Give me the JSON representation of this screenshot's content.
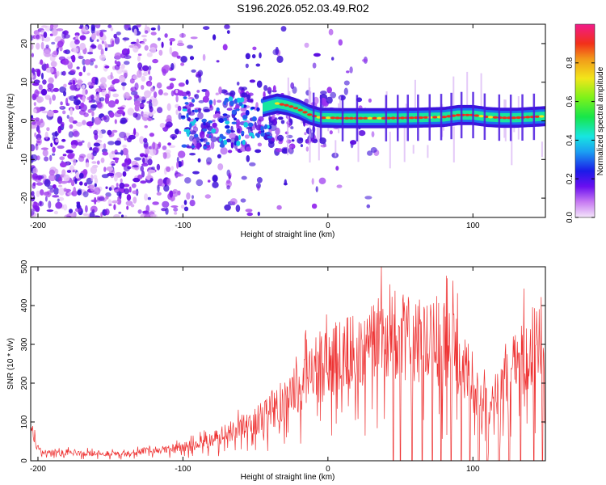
{
  "title": "S196.2026.052.03.49.R02",
  "chart_data": [
    {
      "type": "heatmap",
      "xlabel": "Height of straight line (km)",
      "ylabel": "Frequency (Hz)",
      "xlim": [
        -205,
        150
      ],
      "ylim": [
        -25,
        25
      ],
      "xticks": [
        -200,
        -100,
        0,
        100
      ],
      "yticks": [
        -20,
        -10,
        0,
        10,
        20
      ],
      "colorbar": {
        "label": "Normalized spectral amplitude",
        "range": [
          0,
          1
        ],
        "ticks": [
          "0.0",
          "0.2",
          "0.4",
          "0.6",
          "0.8"
        ],
        "tick_values": [
          0.0,
          0.2,
          0.4,
          0.6,
          0.8
        ]
      },
      "ridge": {
        "x": [
          -45,
          -35,
          -28,
          -20,
          -12,
          -5,
          0,
          10,
          20,
          40,
          60,
          80,
          90,
          100,
          110,
          120,
          130,
          140,
          150
        ],
        "freq": [
          3.5,
          4.5,
          4.0,
          3.0,
          1.5,
          0.8,
          0.8,
          0.7,
          0.7,
          0.7,
          0.8,
          1.0,
          1.5,
          1.5,
          1.0,
          0.8,
          0.8,
          1.0,
          1.2
        ]
      }
    },
    {
      "type": "line",
      "xlabel": "Height of straight line (km)",
      "ylabel": "SNR (10 * v/v)",
      "xlim": [
        -205,
        150
      ],
      "ylim": [
        0,
        500
      ],
      "xticks": [
        -200,
        -100,
        0,
        100
      ],
      "yticks": [
        0,
        100,
        200,
        300,
        400,
        500
      ],
      "series": [
        {
          "name": "SNR",
          "color": "#ee3333",
          "envelope_x": [
            -205,
            -200,
            -195,
            -180,
            -160,
            -140,
            -125,
            -120,
            -115,
            -100,
            -80,
            -60,
            -40,
            -30,
            -20,
            -10,
            0,
            10,
            20,
            30,
            40,
            50,
            60,
            70,
            80,
            90,
            95,
            100,
            105,
            110,
            115,
            120,
            125,
            130,
            140,
            150
          ],
          "envelope_y": [
            90,
            40,
            25,
            25,
            22,
            20,
            30,
            35,
            30,
            40,
            60,
            100,
            140,
            180,
            220,
            260,
            280,
            310,
            330,
            345,
            355,
            360,
            355,
            345,
            340,
            310,
            270,
            200,
            170,
            160,
            170,
            230,
            270,
            300,
            320,
            330
          ],
          "dropouts_x": [
            45,
            50,
            58,
            65,
            72,
            78,
            85,
            92,
            98,
            104,
            110,
            118,
            125,
            133,
            142,
            148
          ]
        }
      ]
    }
  ]
}
